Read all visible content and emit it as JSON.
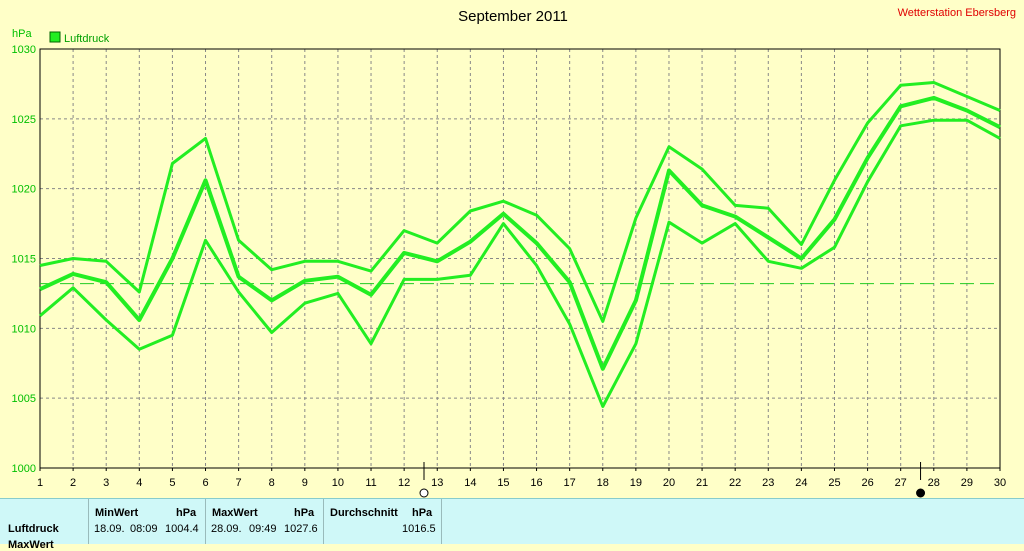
{
  "title": "September 2011",
  "station": "Wetterstation Ebersberg",
  "unit": "hPa",
  "colors": {
    "series": "#22ee22",
    "grid": "#888888",
    "avg": "#22cc22",
    "station": "#e00000"
  },
  "icons": {
    "moon_new": "new-moon-icon",
    "moon_full": "full-moon-icon"
  },
  "chart_data": {
    "type": "line",
    "ylabel": "hPa",
    "ylim": [
      1000,
      1030
    ],
    "yticks": [
      1000,
      1005,
      1010,
      1015,
      1020,
      1025,
      1030
    ],
    "x": [
      1,
      2,
      3,
      4,
      5,
      6,
      7,
      8,
      9,
      10,
      11,
      12,
      13,
      14,
      15,
      16,
      17,
      18,
      19,
      20,
      21,
      22,
      23,
      24,
      25,
      26,
      27,
      28,
      29,
      30
    ],
    "legend": [
      "Luftdruck"
    ],
    "series": [
      {
        "name": "Luftdruck",
        "role": "max",
        "values": [
          1014.5,
          1015.0,
          1014.8,
          1012.6,
          1021.8,
          1023.6,
          1016.3,
          1014.2,
          1014.8,
          1014.8,
          1014.1,
          1017.0,
          1016.1,
          1018.4,
          1019.1,
          1018.1,
          1015.7,
          1010.5,
          1017.9,
          1023.0,
          1021.4,
          1018.8,
          1018.6,
          1016.0,
          1020.6,
          1024.7,
          1027.4,
          1027.6,
          1026.6,
          1025.6
        ]
      },
      {
        "name": "Luftdruck",
        "role": "mean",
        "values": [
          1012.8,
          1013.9,
          1013.3,
          1010.6,
          1015.0,
          1020.6,
          1013.7,
          1012.0,
          1013.4,
          1013.7,
          1012.4,
          1015.4,
          1014.8,
          1016.2,
          1018.2,
          1016.1,
          1013.3,
          1007.1,
          1012.0,
          1021.3,
          1018.8,
          1018.0,
          1016.5,
          1015.0,
          1017.8,
          1022.2,
          1025.9,
          1026.5,
          1025.6,
          1024.4
        ]
      },
      {
        "name": "Luftdruck",
        "role": "min",
        "values": [
          1010.9,
          1012.9,
          1010.6,
          1008.5,
          1009.5,
          1016.3,
          1012.6,
          1009.7,
          1011.8,
          1012.5,
          1008.9,
          1013.5,
          1013.5,
          1013.8,
          1017.5,
          1014.5,
          1010.3,
          1004.4,
          1008.9,
          1017.6,
          1016.1,
          1017.5,
          1014.8,
          1014.3,
          1015.8,
          1020.5,
          1024.5,
          1024.9,
          1024.9,
          1023.6
        ]
      }
    ],
    "average_line": 1013.2,
    "moon_phases": [
      {
        "day": 12.6,
        "phase": "full"
      },
      {
        "day": 27.6,
        "phase": "new"
      }
    ],
    "grid": true
  },
  "table": {
    "row_label": "Luftdruck",
    "row_label_2": "MaxWert",
    "min_header": "MinWert",
    "min_unit": "hPa",
    "min_date": "18.09.",
    "min_time": "08:09",
    "min_value": "1004.4",
    "max_header": "MaxWert",
    "max_unit": "hPa",
    "max_date": "28.09.",
    "max_time": "09:49",
    "max_value": "1027.6",
    "avg_header": "Durchschnitt",
    "avg_unit": "hPa",
    "avg_value": "1016.5"
  }
}
